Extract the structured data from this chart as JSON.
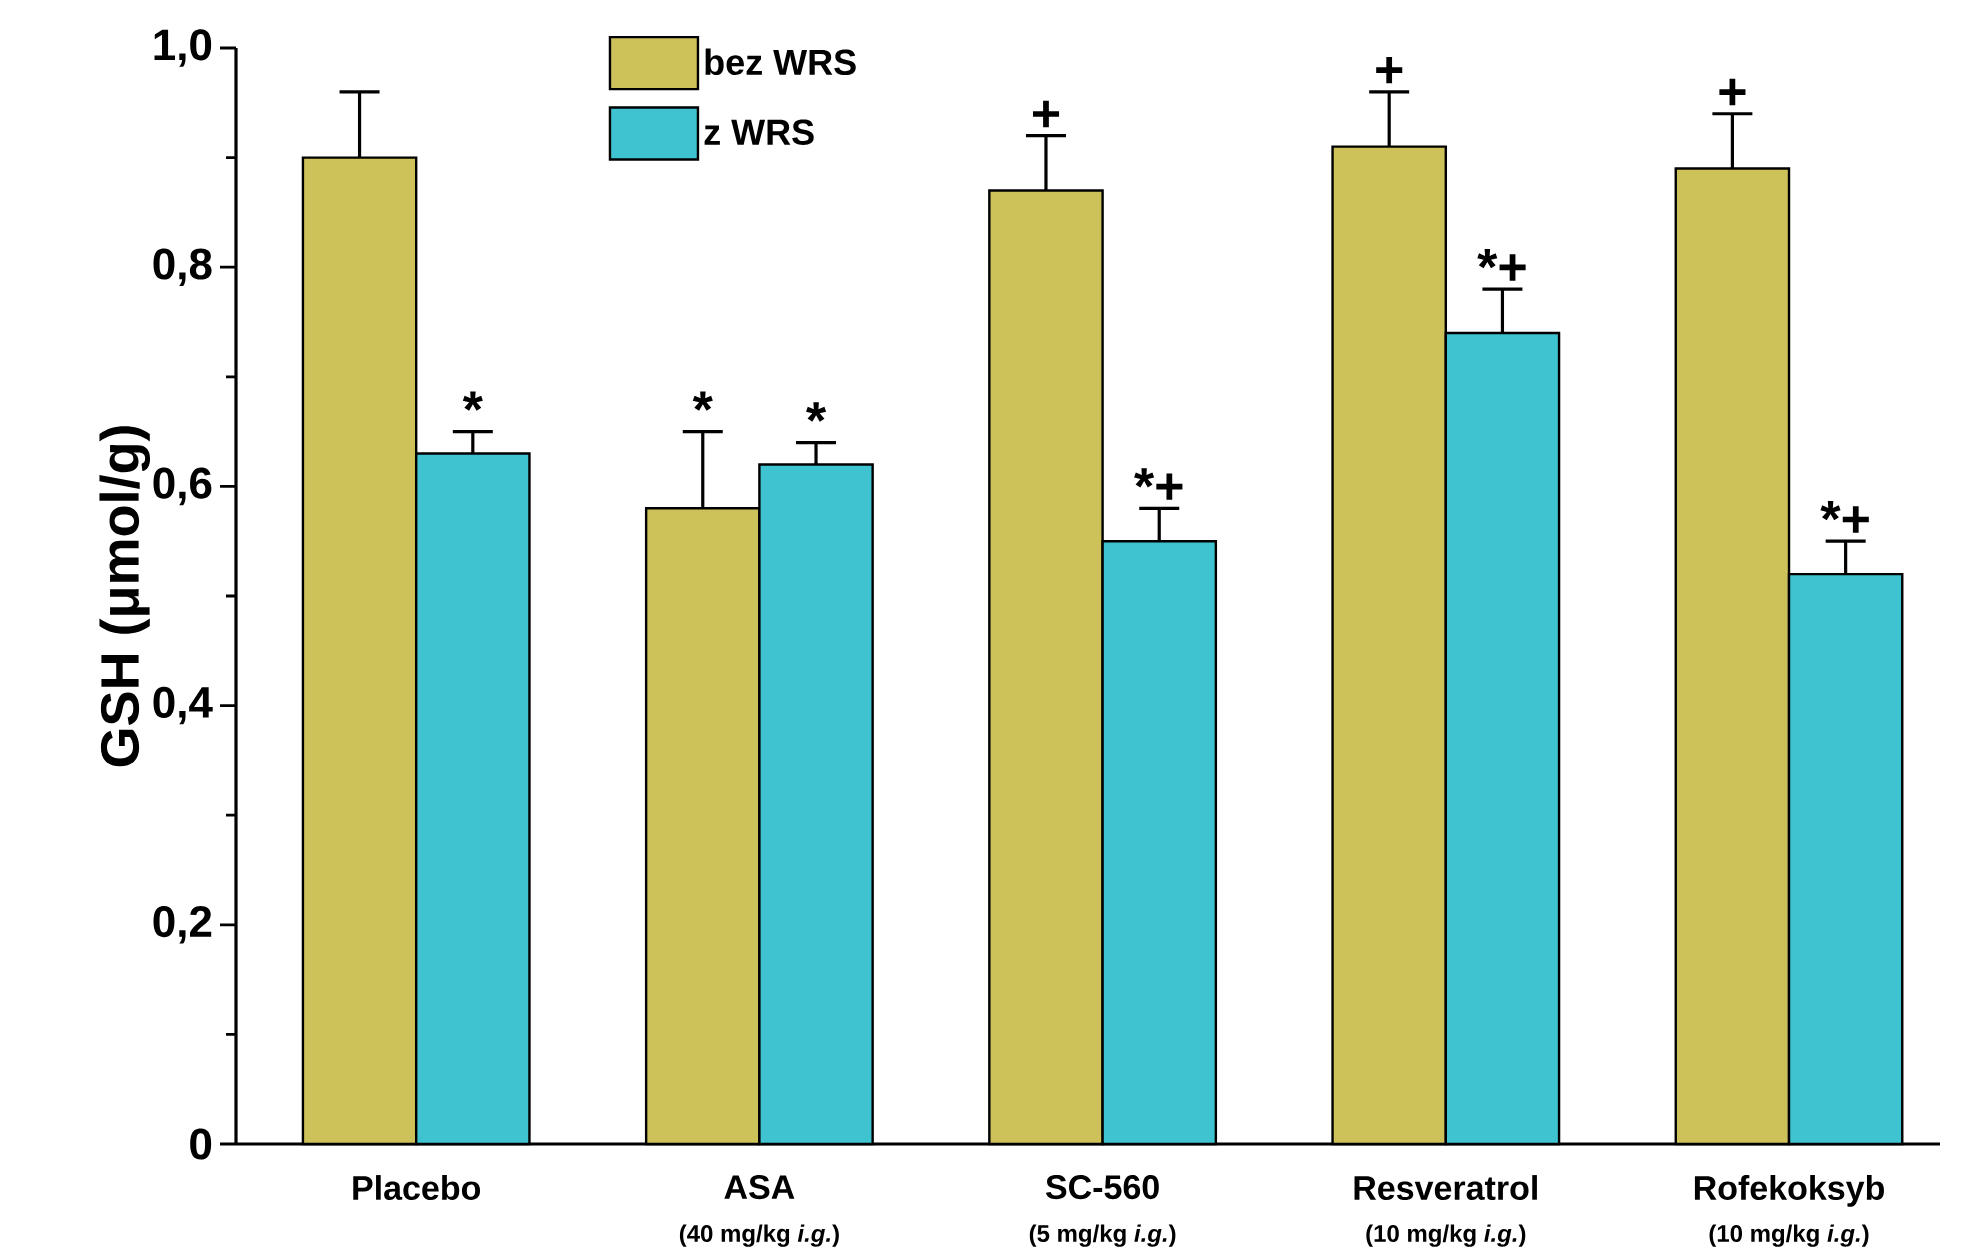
{
  "chart_data": {
    "type": "bar",
    "ylabel": "GSH (μmol/g)",
    "categories": [
      "Placebo",
      "ASA",
      "SC-560",
      "Resveratrol",
      "Rofekoksyb"
    ],
    "series": [
      {
        "name": "bez WRS",
        "color": "#cdc15a",
        "values": [
          0.9,
          0.58,
          0.87,
          0.91,
          0.89
        ],
        "errors": [
          [
            0.9,
            0.96
          ],
          [
            0.58,
            0.65
          ],
          [
            0.87,
            0.92
          ],
          [
            0.91,
            0.96
          ],
          [
            0.89,
            0.94
          ]
        ],
        "value_labels": [
          null,
          "*",
          "+",
          "+",
          "+"
        ]
      },
      {
        "name": "z WRS",
        "color": "#3fc3d0",
        "values": [
          0.63,
          0.62,
          0.55,
          0.74,
          0.52
        ],
        "errors": [
          [
            0.63,
            0.65
          ],
          [
            0.62,
            0.64
          ],
          [
            0.55,
            0.58
          ],
          [
            0.74,
            0.78
          ],
          [
            0.52,
            0.55
          ]
        ],
        "value_labels": [
          "*",
          "*",
          "*+",
          "*+",
          "*+"
        ]
      }
    ],
    "ylim": [
      0,
      1
    ],
    "yticks": [
      0,
      {
        "value": 0.2,
        "label": "0,2"
      },
      {
        "value": 0.4,
        "label": "0,4"
      },
      {
        "value": 0.6,
        "label": "0,6"
      },
      {
        "value": 0.8,
        "label": "0,8"
      },
      {
        "value": 1.0,
        "label": "1,0"
      }
    ],
    "legend": "top",
    "annotations": [
      "(40 mg/kg *i.g.*)",
      "(5 mg/kg *i.g.*)",
      "(10 mg/kg *i.g.*)",
      "(10 mg/kg *i.g.*)"
    ]
  }
}
